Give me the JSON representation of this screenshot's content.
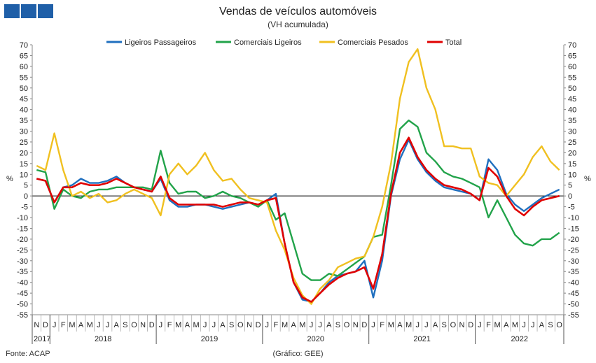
{
  "header": {
    "title": "Vendas de veículos automóveis",
    "subtitle": "(VH acumulada)"
  },
  "footer": {
    "source": "Fonte: ACAP",
    "credit": "(Gráfico: GEE)"
  },
  "colors": {
    "logo": "#1f5fa8",
    "ligeiros_passageiros": "#1f6fbf",
    "comerciais_ligeiros": "#22a34a",
    "comerciais_pesados": "#f0c020",
    "total": "#e00000"
  },
  "chart_data": {
    "type": "line",
    "unit_label_left": "%",
    "unit_label_right": "%",
    "ylim": [
      -55,
      70
    ],
    "yticks": [
      70,
      65,
      60,
      55,
      50,
      45,
      40,
      35,
      30,
      25,
      20,
      15,
      10,
      5,
      0,
      -5,
      -10,
      -15,
      -20,
      -25,
      -30,
      -35,
      -40,
      -45,
      -50,
      -55
    ],
    "grid": false,
    "legend_position": "top",
    "month_labels": [
      "N",
      "D",
      "J",
      "F",
      "M",
      "A",
      "M",
      "J",
      "J",
      "A",
      "S",
      "O",
      "N",
      "D",
      "J",
      "F",
      "M",
      "A",
      "M",
      "J",
      "J",
      "A",
      "S",
      "O",
      "N",
      "D",
      "J",
      "F",
      "M",
      "A",
      "M",
      "J",
      "J",
      "A",
      "S",
      "O",
      "N",
      "D",
      "J",
      "F",
      "M",
      "A",
      "M",
      "J",
      "J",
      "A",
      "S",
      "O",
      "N",
      "D",
      "J",
      "F",
      "M",
      "A",
      "M",
      "J",
      "J",
      "A",
      "S",
      "O"
    ],
    "years": [
      {
        "label": "2017",
        "start": 0,
        "end": 1
      },
      {
        "label": "2018",
        "start": 2,
        "end": 13
      },
      {
        "label": "2019",
        "start": 14,
        "end": 25
      },
      {
        "label": "2020",
        "start": 26,
        "end": 37
      },
      {
        "label": "2021",
        "start": 38,
        "end": 49
      },
      {
        "label": "2022",
        "start": 50,
        "end": 59
      }
    ],
    "series": [
      {
        "name": "Ligeiros Passageiros",
        "color": "#1f6fbf",
        "values": [
          8,
          7,
          -3,
          4,
          5,
          8,
          6,
          6,
          7,
          9,
          6,
          4,
          3,
          2,
          8,
          -2,
          -5,
          -5,
          -4,
          -4,
          -5,
          -6,
          -5,
          -4,
          -3,
          -4,
          -2,
          1,
          -22,
          -40,
          -48,
          -49,
          -45,
          -40,
          -37,
          -36,
          -35,
          -30,
          -47,
          -30,
          0,
          17,
          26,
          17,
          11,
          7,
          4,
          3,
          2,
          1,
          -2,
          17,
          12,
          1,
          -4,
          -7,
          -4,
          -1,
          1,
          3
        ]
      },
      {
        "name": "Comerciais Ligeiros",
        "color": "#22a34a",
        "values": [
          12,
          11,
          -6,
          3,
          0,
          -1,
          2,
          3,
          3,
          4,
          4,
          4,
          4,
          3,
          21,
          6,
          1,
          2,
          2,
          -1,
          0,
          2,
          0,
          -1,
          -3,
          -5,
          -2,
          -11,
          -8,
          -22,
          -36,
          -39,
          -39,
          -36,
          -37,
          -34,
          -31,
          -28,
          -19,
          -18,
          5,
          31,
          35,
          32,
          20,
          16,
          11,
          9,
          8,
          6,
          4,
          -10,
          -2,
          -10,
          -18,
          -22,
          -23,
          -20,
          -20,
          -17
        ]
      },
      {
        "name": "Comerciais Pesados",
        "color": "#f0c020",
        "values": [
          14,
          12,
          29,
          12,
          0,
          2,
          -1,
          1,
          -3,
          -2,
          1,
          3,
          1,
          -1,
          -9,
          10,
          15,
          10,
          14,
          20,
          12,
          7,
          8,
          3,
          -1,
          -2,
          -3,
          -16,
          -25,
          -38,
          -46,
          -50,
          -43,
          -39,
          -33,
          -31,
          -29,
          -28,
          -19,
          -5,
          15,
          45,
          62,
          68,
          50,
          40,
          23,
          23,
          22,
          22,
          9,
          6,
          5,
          0,
          5,
          10,
          18,
          23,
          16,
          12
        ]
      },
      {
        "name": "Total",
        "color": "#e00000",
        "values": [
          8,
          7,
          -3,
          4,
          4,
          6,
          5,
          5,
          6,
          8,
          6,
          4,
          3,
          2,
          9,
          -1,
          -4,
          -4,
          -4,
          -4,
          -4,
          -5,
          -4,
          -3,
          -3,
          -4,
          -2,
          -1,
          -22,
          -40,
          -47,
          -49,
          -45,
          -41,
          -38,
          -36,
          -35,
          -33,
          -43,
          -27,
          1,
          20,
          27,
          18,
          12,
          8,
          5,
          4,
          3,
          1,
          -2,
          13,
          9,
          0,
          -6,
          -9,
          -5,
          -2,
          -1,
          0
        ]
      }
    ]
  }
}
